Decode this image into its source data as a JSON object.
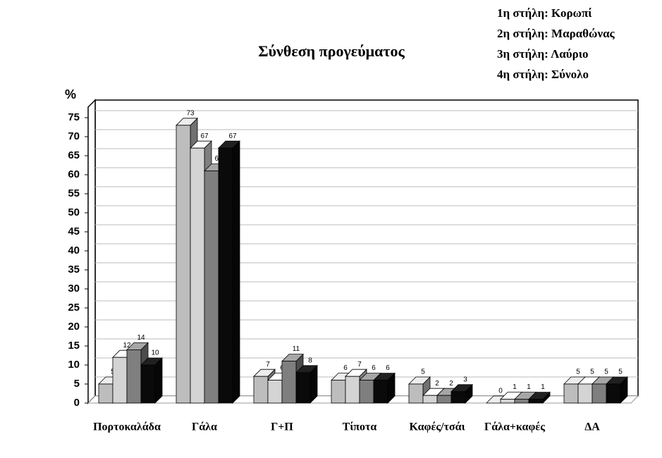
{
  "chart_data": {
    "type": "bar3d",
    "title": "Σύνθεση προγεύματος",
    "y_label": "%",
    "categories": [
      "Πορτοκαλάδα",
      "Γάλα",
      "Γ+Π",
      "Τίποτα",
      "Καφές/τσάι",
      "Γάλα+καφές",
      "ΔΑ"
    ],
    "series": [
      {
        "name": "1η στήλη: Κορωπί",
        "color": "#bdbdbd",
        "values": [
          5,
          73,
          7,
          6,
          5,
          0,
          5
        ]
      },
      {
        "name": "2η στήλη: Μαραθώνας",
        "color": "#d4d4d4",
        "values": [
          12,
          67,
          6,
          7,
          2,
          1,
          5
        ]
      },
      {
        "name": "3η στήλη: Λαύριο",
        "color": "#7f7f7f",
        "values": [
          14,
          61,
          11,
          6,
          2,
          1,
          5
        ]
      },
      {
        "name": "4η στήλη: Σύνολο",
        "color": "#0a0a0a",
        "values": [
          10,
          67,
          8,
          6,
          3,
          1,
          5
        ]
      }
    ],
    "ylim": [
      0,
      75
    ],
    "yticks": [
      0,
      5,
      10,
      15,
      20,
      25,
      30,
      35,
      40,
      45,
      50,
      55,
      60,
      65,
      70,
      75
    ],
    "grid": true
  }
}
